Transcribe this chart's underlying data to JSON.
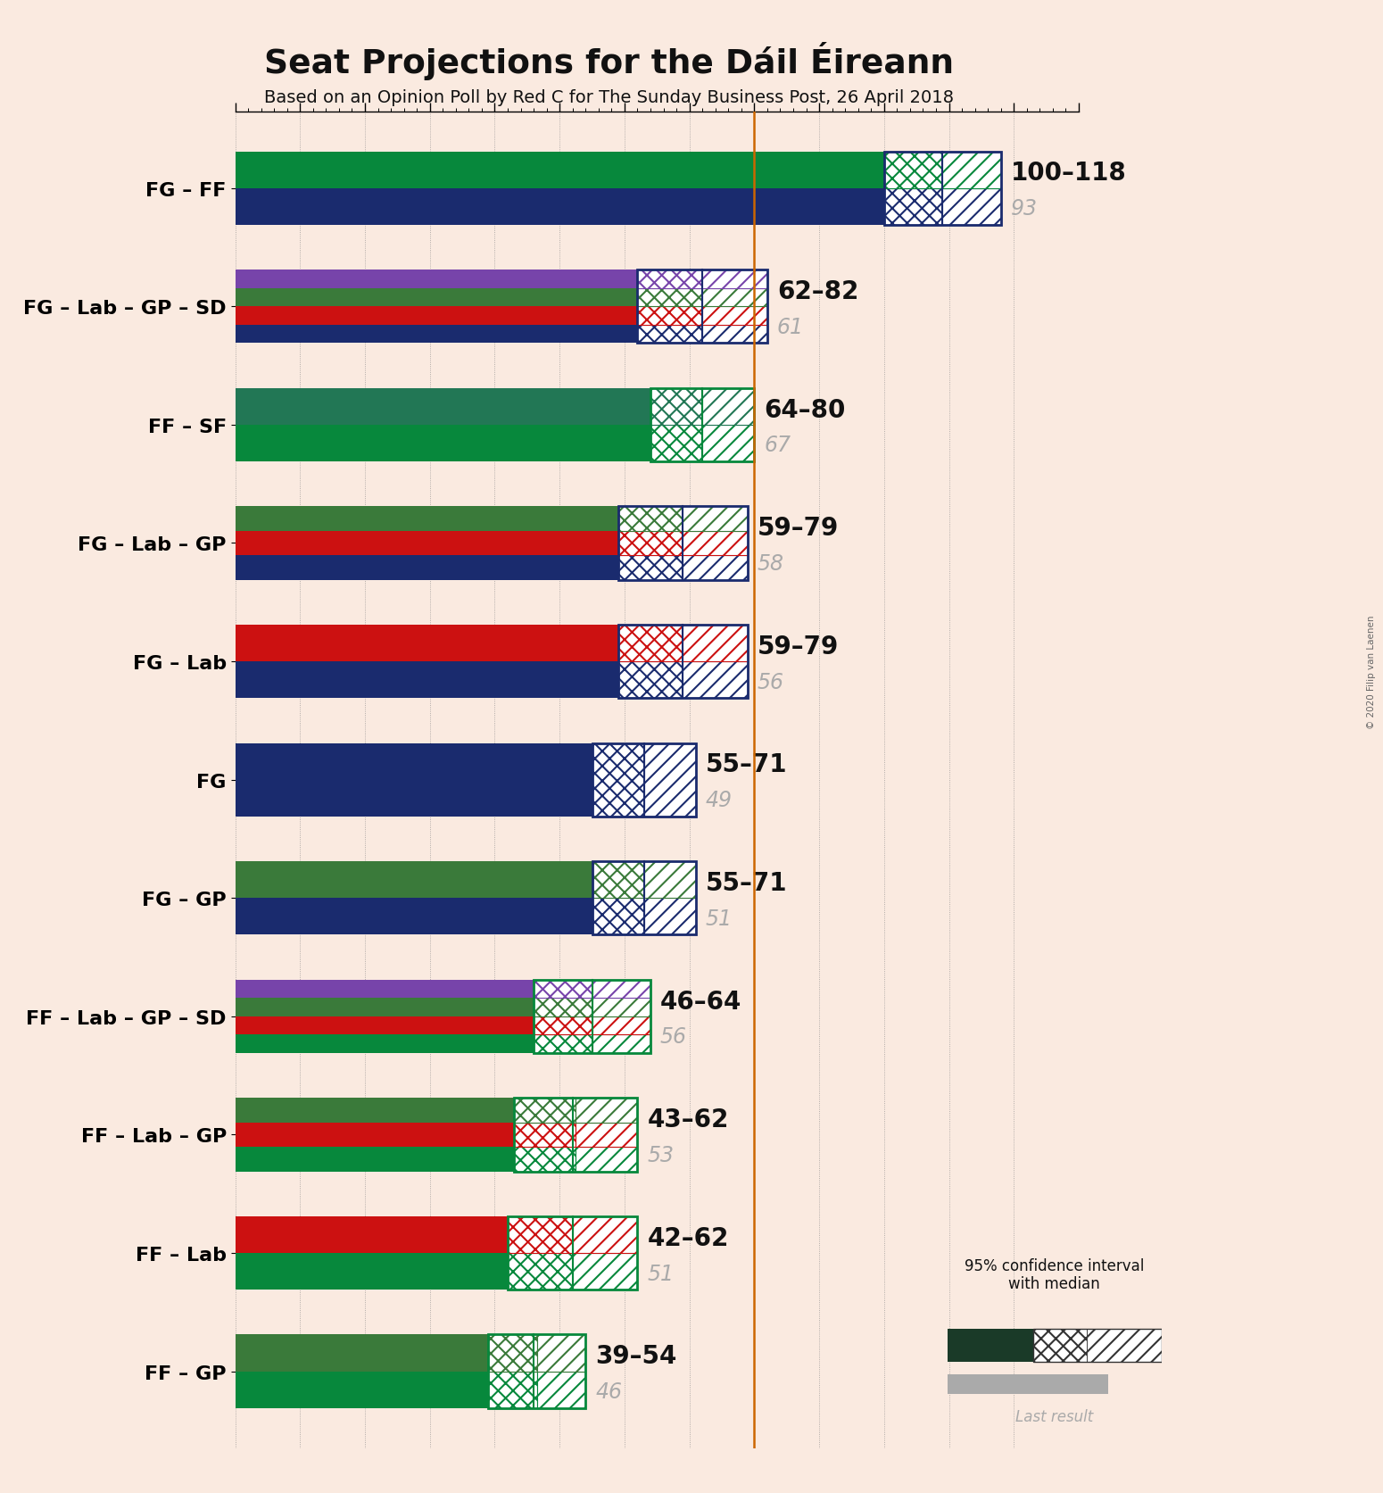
{
  "title": "Seat Projections for the Dáil Éireann",
  "subtitle": "Based on an Opinion Poll by Red C for The Sunday Business Post, 26 April 2018",
  "copyright": "© 2020 Filip van Laenen",
  "background_color": "#faeae0",
  "coalitions": [
    {
      "label": "FG – FF",
      "ci_low": 100,
      "ci_high": 118,
      "median": 109,
      "last_result": 93,
      "party_colors": [
        "#1a2b6e",
        "#07883c"
      ],
      "border_color": "#1a2b6e"
    },
    {
      "label": "FG – Lab – GP – SD",
      "ci_low": 62,
      "ci_high": 82,
      "median": 72,
      "last_result": 61,
      "party_colors": [
        "#1a2b6e",
        "#cc1111",
        "#3a7a3a",
        "#7744aa"
      ],
      "border_color": "#1a2b6e"
    },
    {
      "label": "FF – SF",
      "ci_low": 64,
      "ci_high": 80,
      "median": 72,
      "last_result": 67,
      "party_colors": [
        "#07883c",
        "#227755"
      ],
      "border_color": "#07883c"
    },
    {
      "label": "FG – Lab – GP",
      "ci_low": 59,
      "ci_high": 79,
      "median": 69,
      "last_result": 58,
      "party_colors": [
        "#1a2b6e",
        "#cc1111",
        "#3a7a3a"
      ],
      "border_color": "#1a2b6e"
    },
    {
      "label": "FG – Lab",
      "ci_low": 59,
      "ci_high": 79,
      "median": 69,
      "last_result": 56,
      "party_colors": [
        "#1a2b6e",
        "#cc1111"
      ],
      "border_color": "#1a2b6e"
    },
    {
      "label": "FG",
      "ci_low": 55,
      "ci_high": 71,
      "median": 63,
      "last_result": 49,
      "party_colors": [
        "#1a2b6e"
      ],
      "border_color": "#1a2b6e"
    },
    {
      "label": "FG – GP",
      "ci_low": 55,
      "ci_high": 71,
      "median": 63,
      "last_result": 51,
      "party_colors": [
        "#1a2b6e",
        "#3a7a3a"
      ],
      "border_color": "#1a2b6e"
    },
    {
      "label": "FF – Lab – GP – SD",
      "ci_low": 46,
      "ci_high": 64,
      "median": 55,
      "last_result": 56,
      "party_colors": [
        "#07883c",
        "#cc1111",
        "#3a7a3a",
        "#7744aa"
      ],
      "border_color": "#07883c"
    },
    {
      "label": "FF – Lab – GP",
      "ci_low": 43,
      "ci_high": 62,
      "median": 52,
      "last_result": 53,
      "party_colors": [
        "#07883c",
        "#cc1111",
        "#3a7a3a"
      ],
      "border_color": "#07883c"
    },
    {
      "label": "FF – Lab",
      "ci_low": 42,
      "ci_high": 62,
      "median": 52,
      "last_result": 51,
      "party_colors": [
        "#07883c",
        "#cc1111"
      ],
      "border_color": "#07883c"
    },
    {
      "label": "FF – GP",
      "ci_low": 39,
      "ci_high": 54,
      "median": 46,
      "last_result": 46,
      "party_colors": [
        "#07883c",
        "#3a7a3a"
      ],
      "border_color": "#07883c"
    }
  ],
  "xlim_max": 130,
  "majority_line": 80,
  "bar_height": 0.62,
  "gray_bar_height": 0.18,
  "last_result_color": "#aaaaaa",
  "majority_line_color": "#cc6600",
  "label_fontsize": 16,
  "range_fontsize": 20,
  "last_result_fontsize": 17
}
